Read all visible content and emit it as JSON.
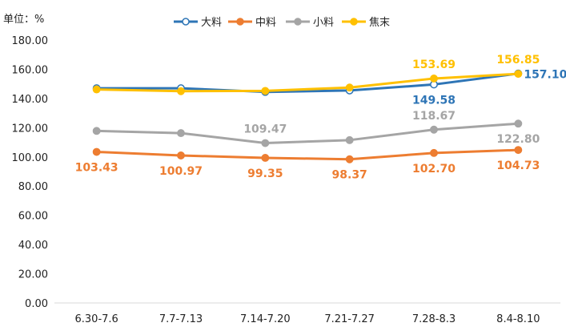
{
  "chart_data": {
    "type": "line",
    "unit_label": "单位：%",
    "categories": [
      "6.30-7.6",
      "7.7-7.13",
      "7.14-7.20",
      "7.21-7.27",
      "7.28-8.3",
      "8.4-8.10"
    ],
    "ylim": [
      0,
      180
    ],
    "y_ticks": [
      "0.00",
      "20.00",
      "40.00",
      "60.00",
      "80.00",
      "100.00",
      "120.00",
      "140.00",
      "160.00",
      "180.00"
    ],
    "grid": false,
    "legend_position": "top-center",
    "series": [
      {
        "name": "大料",
        "color": "#2E75B6",
        "marker": "hollow-circle",
        "values": [
          147.0,
          147.0,
          144.5,
          145.5,
          149.58,
          157.1
        ],
        "labels": [
          {
            "index": 4,
            "text": "149.58",
            "position": "below"
          },
          {
            "index": 5,
            "text": "157.10",
            "position": "right"
          }
        ]
      },
      {
        "name": "中料",
        "color": "#ED7D31",
        "marker": "filled-circle",
        "values": [
          103.43,
          100.97,
          99.35,
          98.37,
          102.7,
          104.73
        ],
        "labels": [
          {
            "index": 0,
            "text": "103.43",
            "position": "below"
          },
          {
            "index": 1,
            "text": "100.97",
            "position": "below"
          },
          {
            "index": 2,
            "text": "99.35",
            "position": "below"
          },
          {
            "index": 3,
            "text": "98.37",
            "position": "below"
          },
          {
            "index": 4,
            "text": "102.70",
            "position": "below"
          },
          {
            "index": 5,
            "text": "104.73",
            "position": "below"
          }
        ]
      },
      {
        "name": "小料",
        "color": "#A5A5A5",
        "marker": "filled-circle",
        "values": [
          117.8,
          116.3,
          109.47,
          111.5,
          118.67,
          122.8
        ],
        "labels": [
          {
            "index": 2,
            "text": "109.47",
            "position": "above"
          },
          {
            "index": 4,
            "text": "118.67",
            "position": "above"
          },
          {
            "index": 5,
            "text": "122.80",
            "position": "below"
          }
        ]
      },
      {
        "name": "焦末",
        "color": "#FFC000",
        "marker": "filled-circle",
        "values": [
          146.2,
          145.0,
          145.2,
          147.5,
          153.69,
          156.85
        ],
        "labels": [
          {
            "index": 4,
            "text": "153.69",
            "position": "above"
          },
          {
            "index": 5,
            "text": "156.85",
            "position": "above"
          }
        ]
      }
    ]
  }
}
